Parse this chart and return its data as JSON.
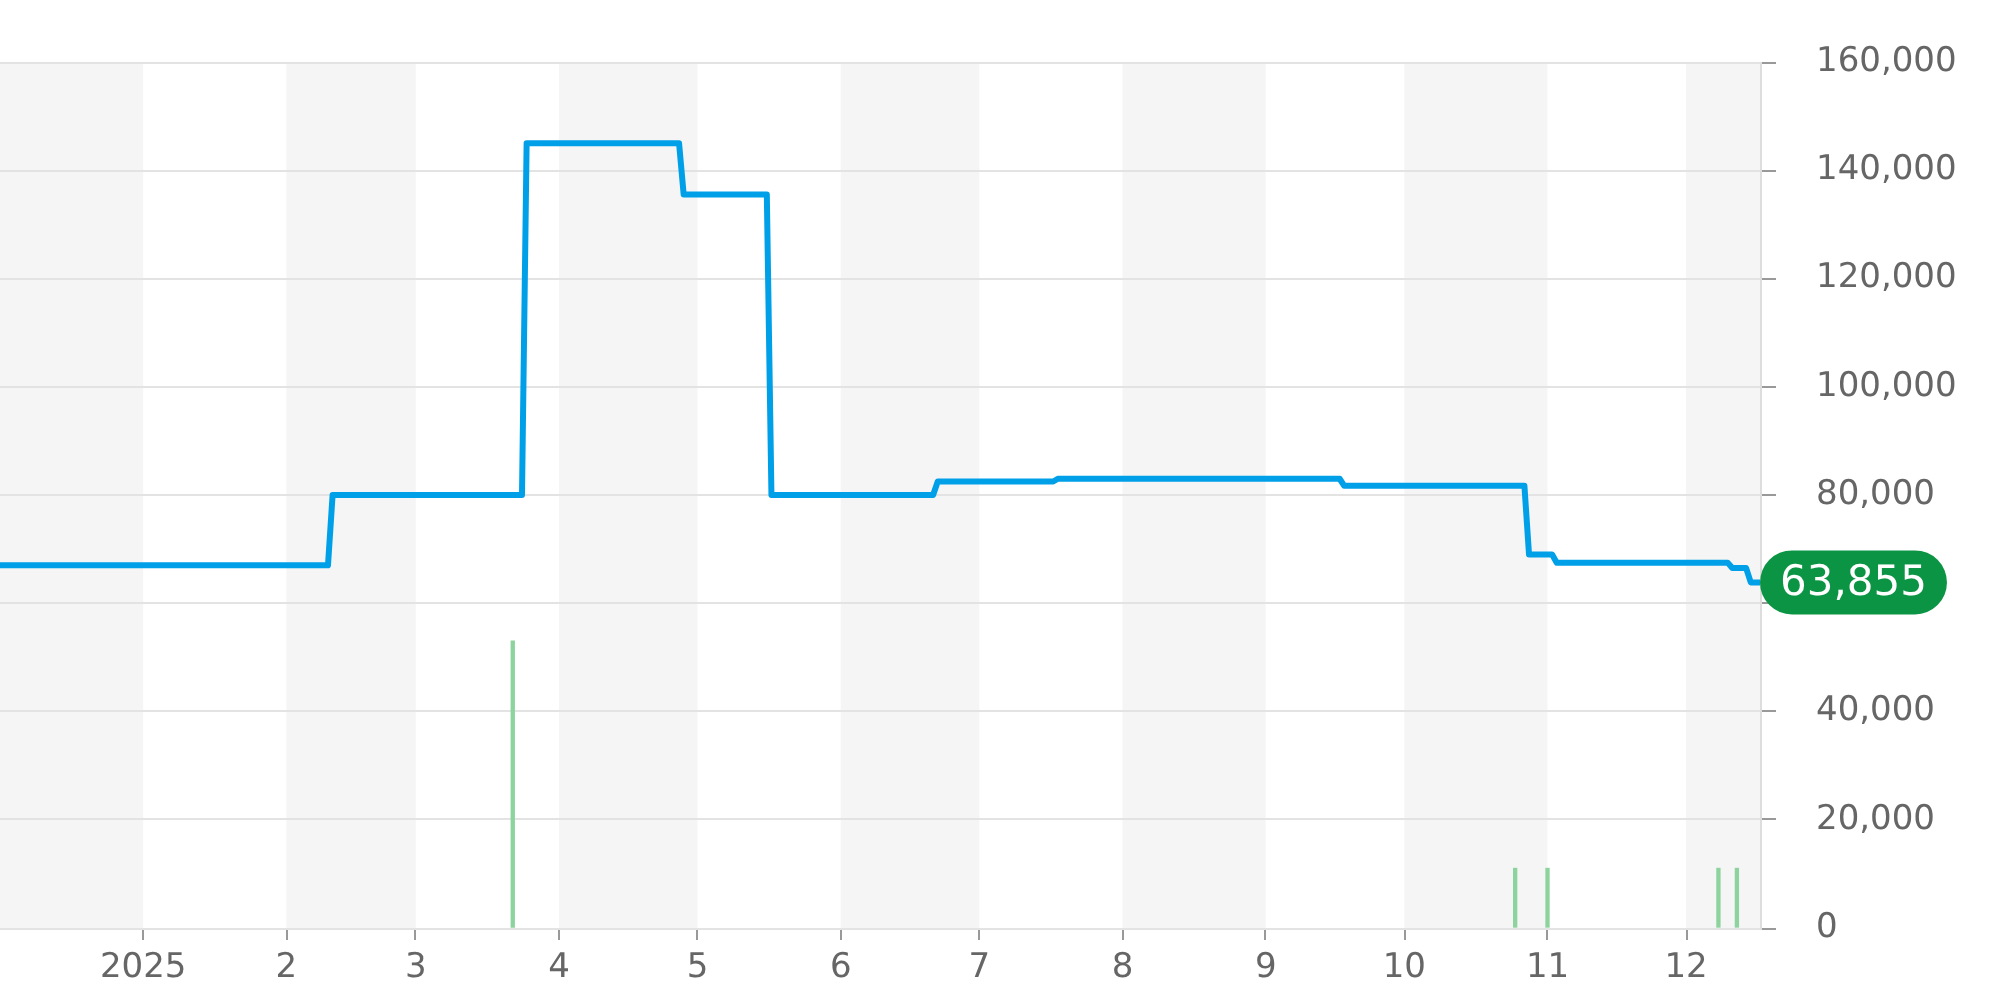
{
  "chart_data": {
    "type": "line",
    "series": [
      {
        "color": "#00a0e9",
        "x": [
          "2024-12-01",
          "2025-02-10",
          "2025-02-11",
          "2025-03-24",
          "2025-03-25",
          "2025-04-27",
          "2025-04-28",
          "2025-05-16",
          "2025-05-17",
          "2025-06-21",
          "2025-06-22",
          "2025-07-17",
          "2025-07-18",
          "2025-09-17",
          "2025-09-18",
          "2025-10-27",
          "2025-10-28",
          "2025-11-02",
          "2025-11-03",
          "2025-12-10",
          "2025-12-11",
          "2025-12-14",
          "2025-12-15",
          "2025-12-17"
        ],
        "values": [
          67000,
          67000,
          80000,
          80000,
          145000,
          145000,
          135500,
          135500,
          80000,
          80000,
          82500,
          82500,
          83000,
          83000,
          81700,
          81700,
          69000,
          69000,
          67500,
          67500,
          66500,
          66500,
          63855,
          63855
        ],
        "value_labels": [
          null,
          null,
          null,
          null,
          null,
          null,
          null,
          null,
          null,
          null,
          null,
          null,
          null,
          null,
          null,
          null,
          null,
          null,
          null,
          null,
          null,
          null,
          null,
          "63,855"
        ]
      },
      {
        "type": "bar",
        "color": "#8dd39e",
        "x": [
          "2025-03-22",
          "2025-10-25",
          "2025-11-01",
          "2025-12-08",
          "2025-12-12"
        ],
        "values": [
          53000,
          11000,
          11000,
          11000,
          11000
        ]
      }
    ],
    "xlim": [
      "2024-12-01",
      "2025-12-17"
    ],
    "xticks": [
      {
        "value": "2025-01-01",
        "label": "2025"
      },
      {
        "value": "2025-02-01",
        "label": "2"
      },
      {
        "value": "2025-03-01",
        "label": "3"
      },
      {
        "value": "2025-04-01",
        "label": "4"
      },
      {
        "value": "2025-05-01",
        "label": "5"
      },
      {
        "value": "2025-06-01",
        "label": "6"
      },
      {
        "value": "2025-07-01",
        "label": "7"
      },
      {
        "value": "2025-08-01",
        "label": "8"
      },
      {
        "value": "2025-09-01",
        "label": "9"
      },
      {
        "value": "2025-10-01",
        "label": "10"
      },
      {
        "value": "2025-11-01",
        "label": "11"
      },
      {
        "value": "2025-12-01",
        "label": "12"
      }
    ],
    "ylim": [
      0,
      160000
    ],
    "yticks": [
      0,
      {
        "value": 20000,
        "label": "20,000"
      },
      {
        "value": 40000,
        "label": "40,000"
      },
      {
        "value": 60000,
        "label": null
      },
      {
        "value": 80000,
        "label": "80,000"
      },
      {
        "value": 100000,
        "label": "100,000"
      },
      {
        "value": 120000,
        "label": "120,000"
      },
      {
        "value": 140000,
        "label": "140,000"
      },
      {
        "value": 160000,
        "label": "160,000"
      }
    ],
    "grid": "y",
    "bands": [
      {
        "axis": "x",
        "from": "2024-12-01",
        "to": "2025-01-01",
        "color": "#f5f5f5"
      },
      {
        "axis": "x",
        "from": "2025-02-01",
        "to": "2025-03-01",
        "color": "#f5f5f5"
      },
      {
        "axis": "x",
        "from": "2025-04-01",
        "to": "2025-05-01",
        "color": "#f5f5f5"
      },
      {
        "axis": "x",
        "from": "2025-06-01",
        "to": "2025-07-01",
        "color": "#f5f5f5"
      },
      {
        "axis": "x",
        "from": "2025-08-01",
        "to": "2025-09-01",
        "color": "#f5f5f5"
      },
      {
        "axis": "x",
        "from": "2025-10-01",
        "to": "2025-11-01",
        "color": "#f5f5f5"
      },
      {
        "axis": "x",
        "from": "2025-12-01",
        "to": "2025-12-17",
        "color": "#f5f5f5"
      }
    ]
  }
}
